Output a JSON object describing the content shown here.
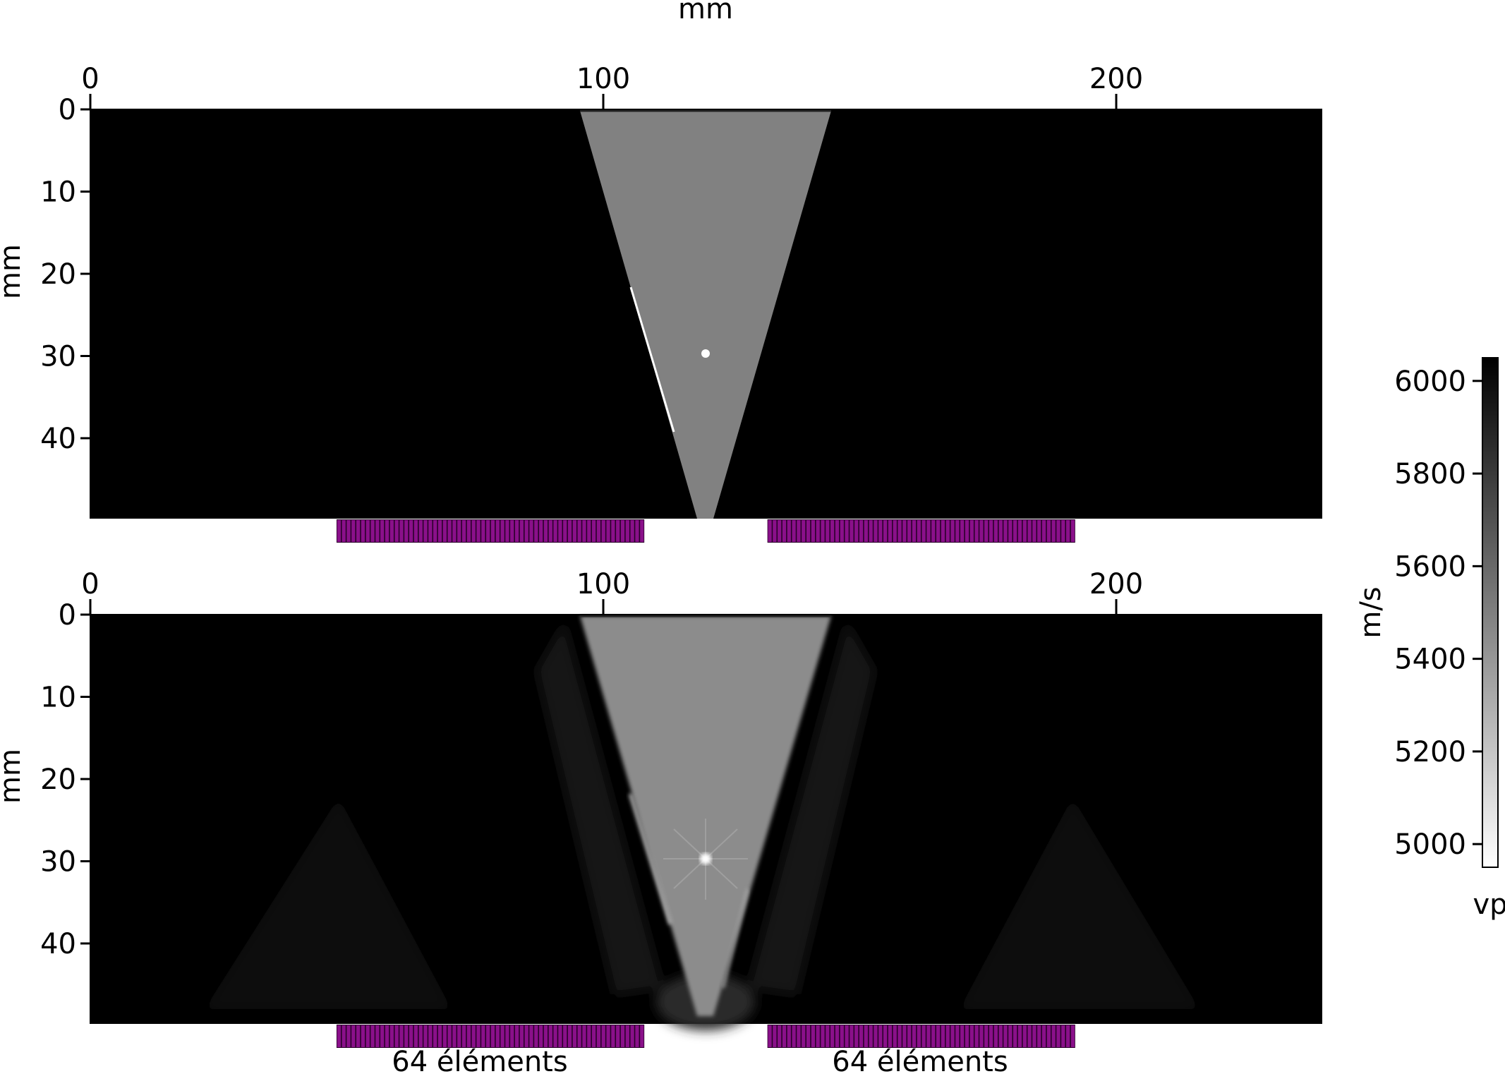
{
  "chart_data": [
    {
      "type": "heatmap",
      "panel": "top",
      "xlabel": "mm",
      "ylabel": "mm",
      "xlim": [
        0,
        240
      ],
      "ylim": [
        50,
        0
      ],
      "x_ticks": [
        0,
        100,
        200
      ],
      "y_ticks": [
        0,
        10,
        20,
        30,
        40
      ],
      "background_value": 6050,
      "wedge": {
        "top_x": [
          96,
          145
        ],
        "bottom_x": [
          118,
          121
        ],
        "value": 5520
      },
      "defect": {
        "x": 120,
        "y": 30,
        "value": 4950
      },
      "arrays": [
        {
          "x_range": [
            48,
            108
          ],
          "elements": 64
        },
        {
          "x_range": [
            132,
            192
          ],
          "elements": 64
        }
      ]
    },
    {
      "type": "heatmap",
      "panel": "bottom",
      "ylabel": "mm",
      "xlim": [
        0,
        240
      ],
      "ylim": [
        50,
        0
      ],
      "x_ticks": [
        0,
        100,
        200
      ],
      "y_ticks": [
        0,
        10,
        20,
        30,
        40
      ],
      "background_value": 6050,
      "wedge": {
        "top_x": [
          96,
          145
        ],
        "bottom_x": [
          118,
          121
        ],
        "value": 5480
      },
      "defect": {
        "x": 120,
        "y": 30,
        "value": 5000
      },
      "arrays": [
        {
          "x_range": [
            48,
            108
          ],
          "elements": 64,
          "label": "64 éléments"
        },
        {
          "x_range": [
            132,
            192
          ],
          "elements": 64,
          "label": "64 éléments"
        }
      ]
    }
  ],
  "colorbar": {
    "label": "m/s",
    "name": "vp",
    "range": [
      4950,
      6050
    ],
    "ticks": [
      5000,
      5200,
      5400,
      5600,
      5800,
      6000
    ],
    "colormap": "gray_r"
  },
  "colors": {
    "array": "#8a108a",
    "array_dark": "#2a002a"
  }
}
